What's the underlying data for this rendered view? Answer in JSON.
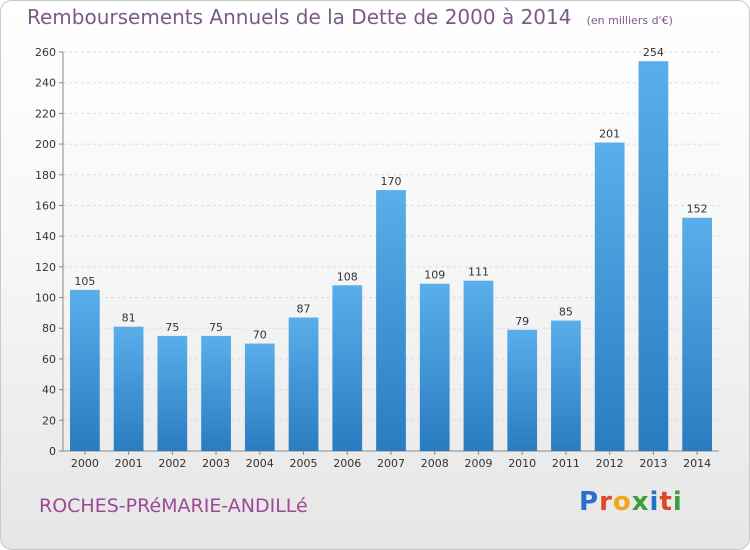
{
  "title": "Remboursements Annuels de la Dette de 2000 à 2014",
  "unit_note": "(en milliers d'€)",
  "place_label": "ROCHES-PRéMARIE-ANDILLé",
  "brand": {
    "letters": [
      "P",
      "r",
      "o",
      "x",
      "i",
      "t",
      "i"
    ],
    "colors": [
      "#2a6fc9",
      "#e0472a",
      "#f2a516",
      "#3a9e3a",
      "#2a6fc9",
      "#e0472a",
      "#3a9e3a"
    ]
  },
  "colors": {
    "bar_light": "#5aaeea",
    "bar_dark": "#2a7cc0",
    "title": "#7a5a86",
    "place": "#9b4a93"
  },
  "chart_data": {
    "type": "bar",
    "categories": [
      "2000",
      "2001",
      "2002",
      "2003",
      "2004",
      "2005",
      "2006",
      "2007",
      "2008",
      "2009",
      "2010",
      "2011",
      "2012",
      "2013",
      "2014"
    ],
    "values": [
      105,
      81,
      75,
      75,
      70,
      87,
      108,
      170,
      109,
      111,
      79,
      85,
      201,
      254,
      152
    ],
    "ylim": [
      0,
      260
    ],
    "yticks": [
      0,
      20,
      40,
      60,
      80,
      100,
      120,
      140,
      160,
      180,
      200,
      220,
      240,
      260
    ],
    "grid": true,
    "xlabel": "",
    "ylabel": ""
  }
}
